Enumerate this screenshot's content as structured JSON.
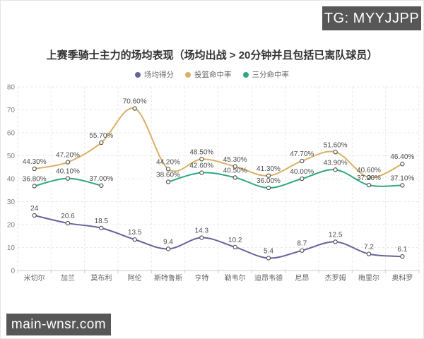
{
  "badges": {
    "tg": "TG: MYYJJPP",
    "site": "main-wnsr.com"
  },
  "chart_data": {
    "type": "line",
    "title": "上赛季骑士主力的场均表现（场均出战 > 20分钟并且包括已离队球员）",
    "categories": [
      "米切尔",
      "加兰",
      "莫布利",
      "阿伦",
      "斯特鲁斯",
      "亨特",
      "勒韦尔",
      "迪昂韦德",
      "尼昂",
      "杰罗姆",
      "梅里尔",
      "奥科罗"
    ],
    "series": [
      {
        "name": "场均得分",
        "color": "#64649b",
        "values": [
          24,
          20.6,
          18.5,
          13.5,
          9.4,
          14.3,
          10.2,
          5.4,
          8.7,
          12.5,
          7.2,
          6.1
        ],
        "labels": [
          "24",
          "20.6",
          "18.5",
          "13.5",
          "9.4",
          "14.3",
          "10.2",
          "5.4",
          "8.7",
          "12.5",
          "7.2",
          "6.1"
        ]
      },
      {
        "name": "投篮命中率",
        "color": "#d9b065",
        "values": [
          44.3,
          47.2,
          55.7,
          70.6,
          44.2,
          48.5,
          45.3,
          41.3,
          47.7,
          51.6,
          40.6,
          46.4
        ],
        "labels": [
          "44.30%",
          "47.20%",
          "55.70%",
          "70.60%",
          "44.20%",
          "48.50%",
          "45.30%",
          "41.30%",
          "47.70%",
          "51.60%",
          "40.60%",
          "46.40%"
        ]
      },
      {
        "name": "三分命中率",
        "color": "#2ea881",
        "values": [
          36.8,
          40.1,
          37,
          null,
          38.6,
          42.6,
          40.5,
          36,
          40,
          43.9,
          37.2,
          37.1
        ],
        "labels": [
          "36.80%",
          "40.10%",
          "37.00%",
          null,
          "38.60%",
          "42.60%",
          "40.50%",
          "36.00%",
          "40.00%",
          "43.90%",
          "37.20%",
          "37.10%"
        ]
      }
    ],
    "ylim": [
      0,
      80
    ],
    "ytick_step": 10,
    "grid": true,
    "legend_position": "top",
    "label_color": "#4d4d4d",
    "axis_label_color": "#7f7f7f",
    "category_label_color": "#666666",
    "grid_color": "#e9e9e9",
    "axis_line_color": "#cccccc",
    "marker_stroke": "#4a4a4a"
  }
}
